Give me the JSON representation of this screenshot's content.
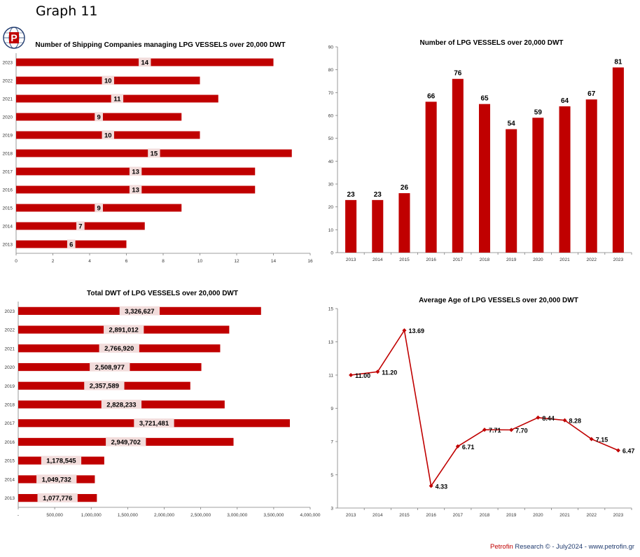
{
  "page": {
    "title": "Graph 11",
    "footer": {
      "brand": "Petrofin",
      "text": " Research © - July2024 - www.petrofin.gr"
    }
  },
  "colors": {
    "bar": "#c00000",
    "label_bg": "#f2dcdb",
    "axis": "#7f7f7f"
  },
  "logo": {
    "icon": "petrofin-logo-icon",
    "letter": "P"
  },
  "chart_data": [
    {
      "type": "bar",
      "orientation": "horizontal",
      "title": "Number of Shipping Companies managing LPG VESSELS over 20,000 DWT",
      "categories": [
        "2023",
        "2022",
        "2021",
        "2020",
        "2019",
        "2018",
        "2017",
        "2016",
        "2015",
        "2014",
        "2013"
      ],
      "values": [
        14,
        10,
        11,
        9,
        10,
        15,
        13,
        13,
        9,
        7,
        6
      ],
      "labels": [
        "14",
        "10",
        "11",
        "9",
        "10",
        "15",
        "13",
        "13",
        "9",
        "7",
        "6"
      ],
      "xlim": [
        0,
        16
      ],
      "xticks": [
        "0",
        "2",
        "4",
        "6",
        "8",
        "10",
        "12",
        "14",
        "16"
      ],
      "legend": "none"
    },
    {
      "type": "bar",
      "orientation": "vertical",
      "title": "Number of LPG  VESSELS over 20,000 DWT",
      "categories": [
        "2013",
        "2014",
        "2015",
        "2016",
        "2017",
        "2018",
        "2019",
        "2020",
        "2021",
        "2022",
        "2023"
      ],
      "values": [
        23,
        23,
        26,
        66,
        76,
        65,
        54,
        59,
        64,
        67,
        81
      ],
      "labels": [
        "23",
        "23",
        "26",
        "66",
        "76",
        "65",
        "54",
        "59",
        "64",
        "67",
        "81"
      ],
      "ylim": [
        0,
        90
      ],
      "yticks": [
        "0",
        "10",
        "20",
        "30",
        "40",
        "50",
        "60",
        "70",
        "80",
        "90"
      ],
      "legend": "none"
    },
    {
      "type": "bar",
      "orientation": "horizontal",
      "title": "Total DWT of LPG VESSELS over 20,000 DWT",
      "categories": [
        "2023",
        "2022",
        "2021",
        "2020",
        "2019",
        "2018",
        "2017",
        "2016",
        "2015",
        "2014",
        "2013"
      ],
      "values": [
        3326627,
        2891012,
        2766920,
        2508977,
        2357589,
        2828233,
        3721481,
        2949702,
        1178545,
        1049732,
        1077776
      ],
      "labels": [
        "3,326,627",
        "2,891,012",
        "2,766,920",
        "2,508,977",
        "2,357,589",
        "2,828,233",
        "3,721,481",
        "2,949,702",
        "1,178,545",
        "1,049,732",
        "1,077,776"
      ],
      "xlim": [
        0,
        4000000
      ],
      "xticks": [
        "-",
        "500,000",
        "1,000,000",
        "1,500,000",
        "2,000,000",
        "2,500,000",
        "3,000,000",
        "3,500,000",
        "4,000,000"
      ],
      "legend": "none"
    },
    {
      "type": "line",
      "title": "Average Age of LPG VESSELS over 20,000 DWT",
      "categories": [
        "2013",
        "2014",
        "2015",
        "2016",
        "2017",
        "2018",
        "2019",
        "2020",
        "2021",
        "2022",
        "2023"
      ],
      "values": [
        11.0,
        11.2,
        13.69,
        4.33,
        6.71,
        7.71,
        7.7,
        8.44,
        8.28,
        7.15,
        6.47
      ],
      "labels": [
        "11.00",
        "11.20",
        "13.69",
        "4.33",
        "6.71",
        "7.71",
        "7.70",
        "8.44",
        "8.28",
        "7.15",
        "6.47"
      ],
      "ylim": [
        3,
        15
      ],
      "yticks": [
        "3",
        "5",
        "7",
        "9",
        "11",
        "13",
        "15"
      ],
      "legend": "none"
    }
  ]
}
